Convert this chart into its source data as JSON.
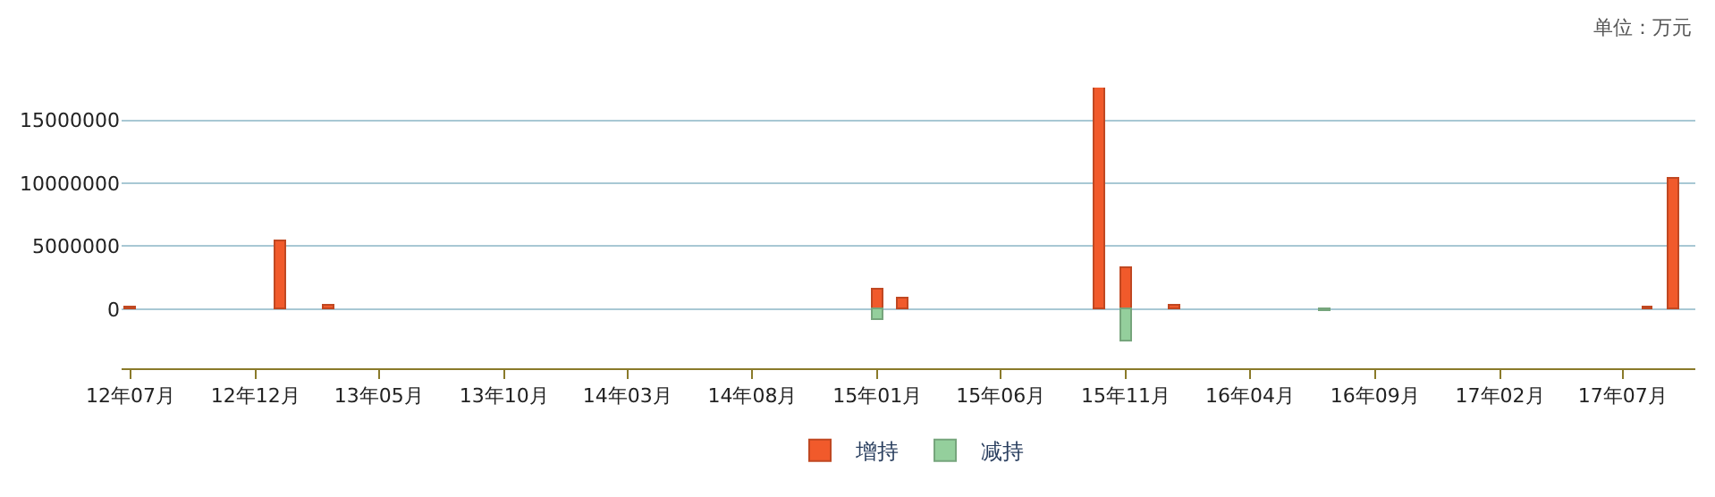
{
  "chart_data": {
    "type": "bar",
    "annotations": [
      "单位：万元"
    ],
    "x": [
      "2012-07",
      "2013-01",
      "2013-03",
      "2015-01",
      "2015-02",
      "2015-10",
      "2015-11",
      "2016-01",
      "2016-07",
      "2017-08",
      "2017-09"
    ],
    "series": [
      {
        "name": "增持",
        "color": "#f15a2b",
        "values": [
          100000,
          5400000,
          300000,
          1500000,
          800000,
          17600000,
          3200000,
          300000,
          null,
          100000,
          10400000
        ]
      },
      {
        "name": "减持",
        "color": "#94cf9c",
        "values": [
          null,
          null,
          null,
          -900000,
          null,
          null,
          -2600000,
          null,
          -200000,
          null,
          null
        ]
      }
    ],
    "xlim": [
      "2012-06-20",
      "2017-09-28"
    ],
    "xticks": [
      {
        "value": "2012-07",
        "label": "12年07月"
      },
      {
        "value": "2012-12",
        "label": "12年12月"
      },
      {
        "value": "2013-05",
        "label": "13年05月"
      },
      {
        "value": "2013-10",
        "label": "13年10月"
      },
      {
        "value": "2014-03",
        "label": "14年03月"
      },
      {
        "value": "2014-08",
        "label": "14年08月"
      },
      {
        "value": "2015-01",
        "label": "15年01月"
      },
      {
        "value": "2015-06",
        "label": "15年06月"
      },
      {
        "value": "2015-11",
        "label": "15年11月"
      },
      {
        "value": "2016-04",
        "label": "16年04月"
      },
      {
        "value": "2016-09",
        "label": "16年09月"
      },
      {
        "value": "2017-02",
        "label": "17年02月"
      },
      {
        "value": "2017-07",
        "label": "17年07月"
      }
    ],
    "ylim": [
      -4700000,
      17600000
    ],
    "yticks": [
      0,
      5000000,
      10000000,
      15000000
    ],
    "grid": "y",
    "legend": "bottom"
  }
}
